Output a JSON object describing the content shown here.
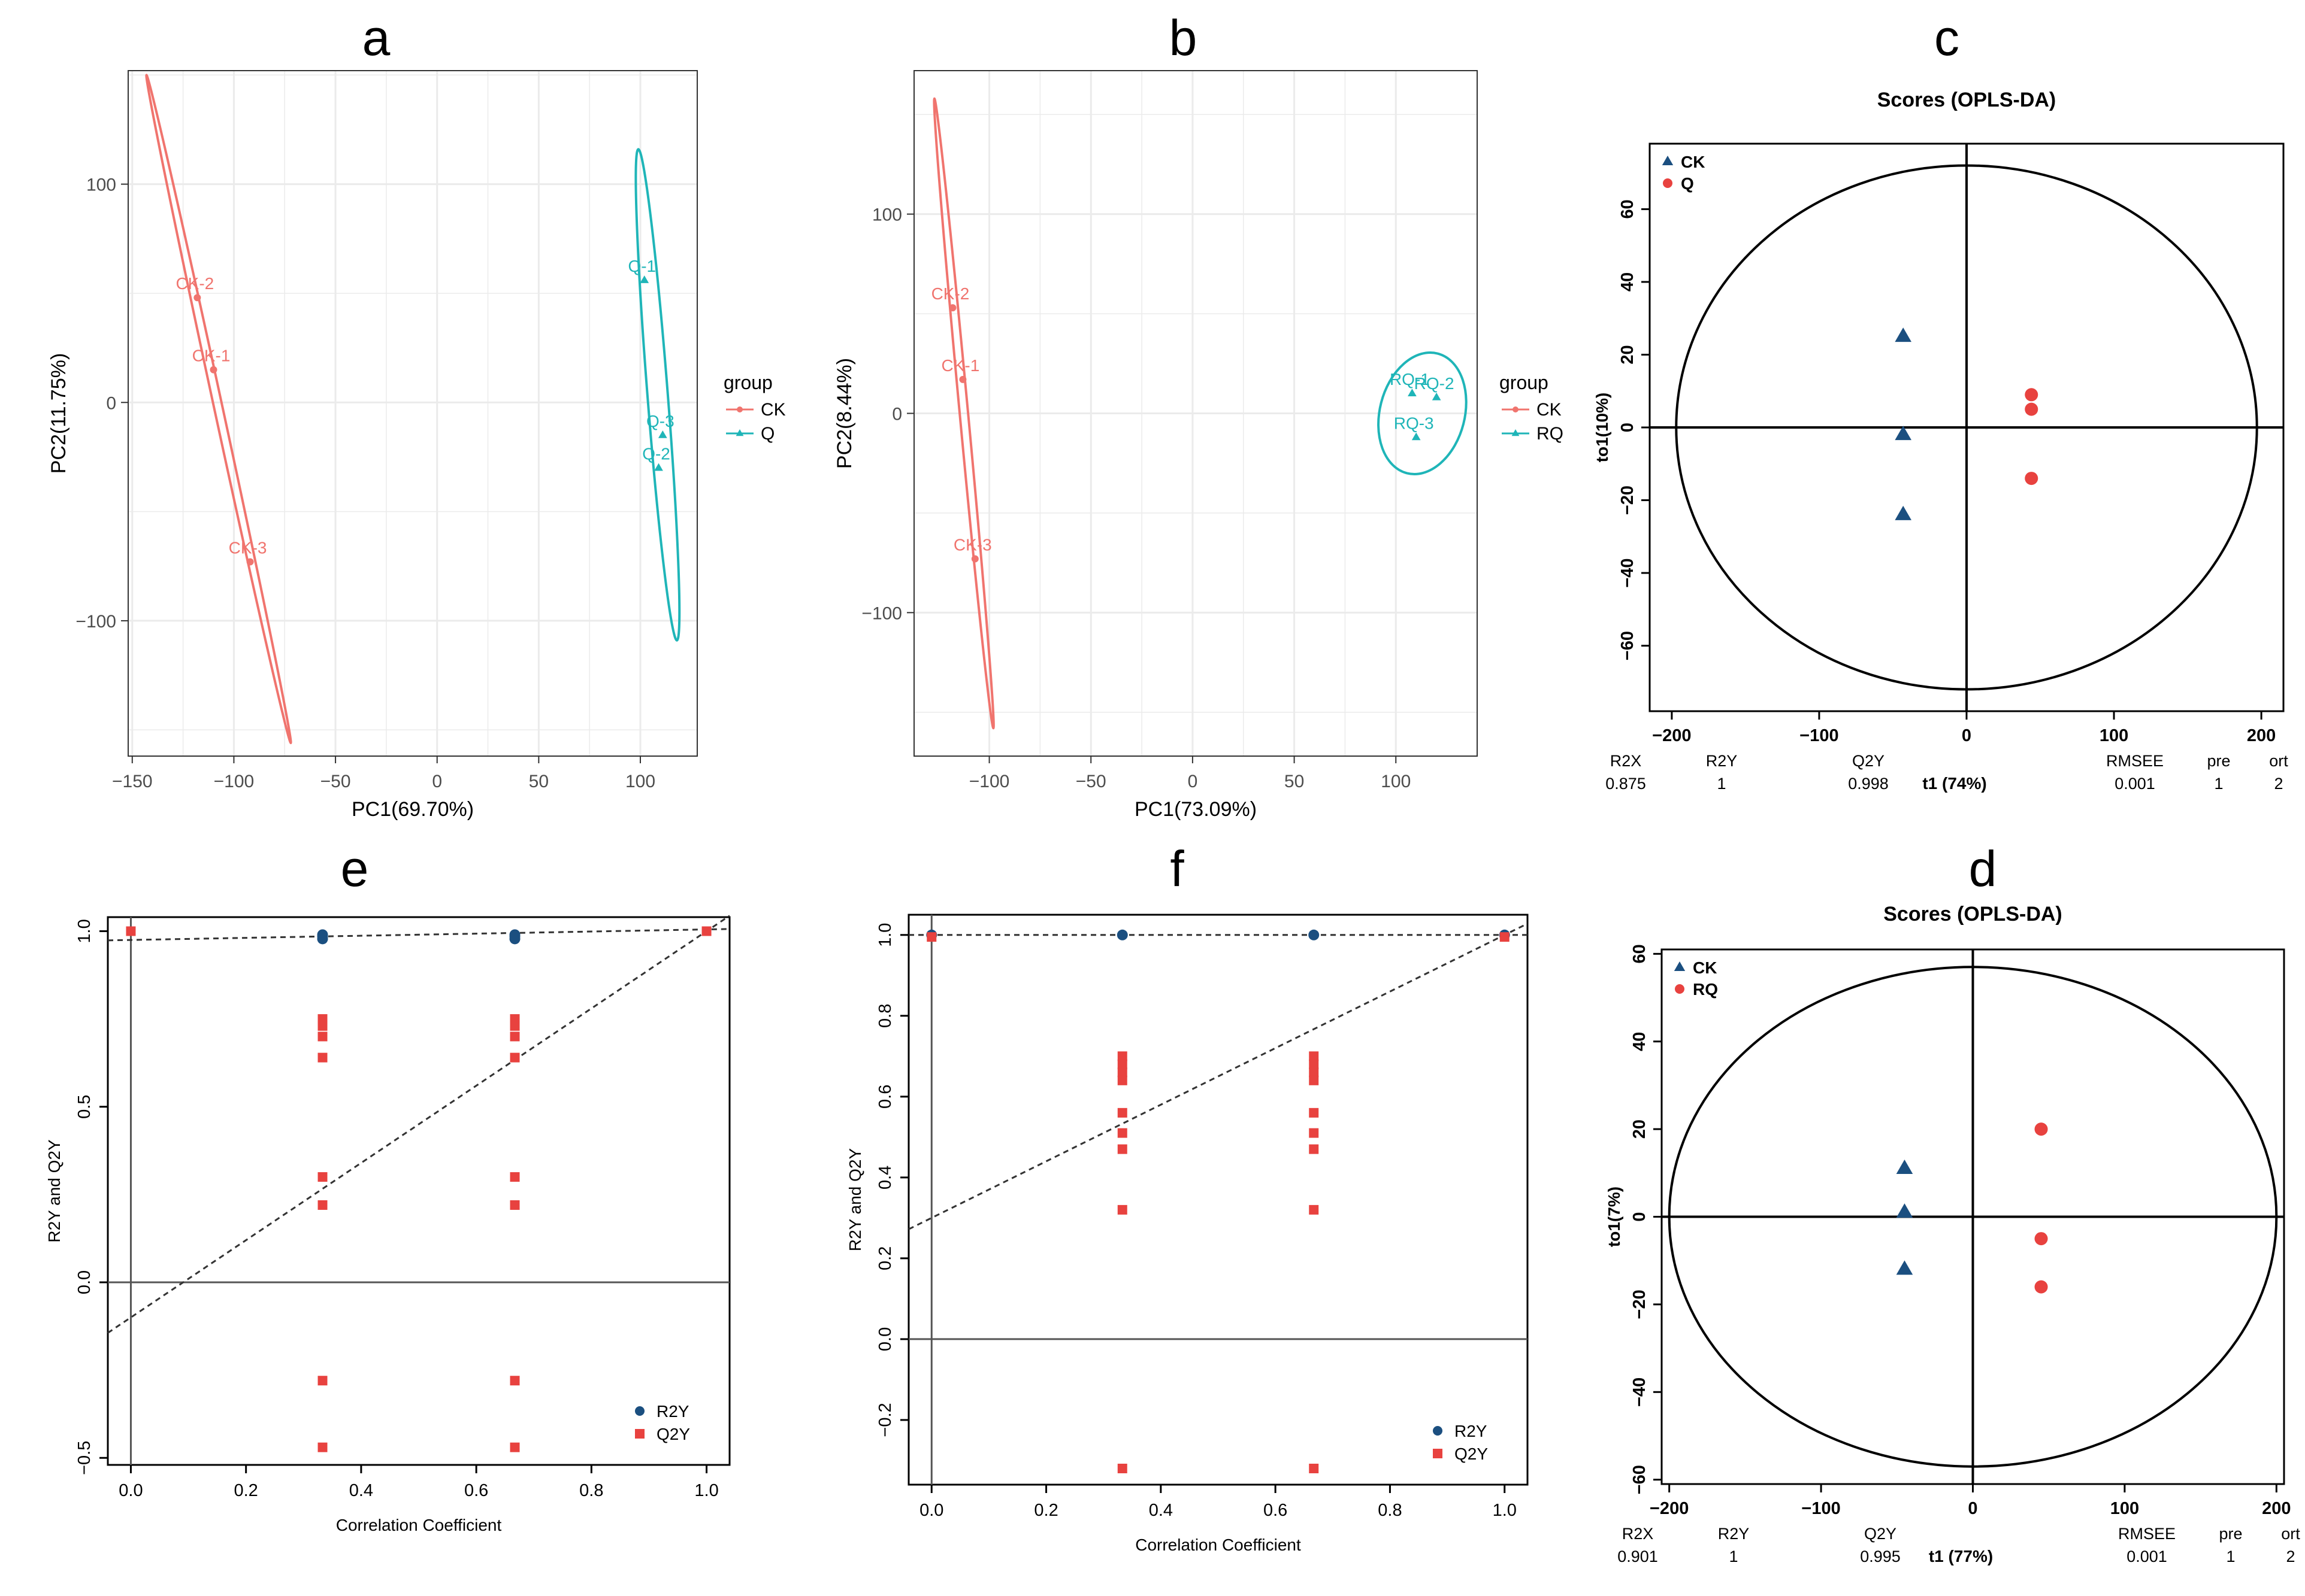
{
  "figure": {
    "colors": {
      "ck_pca": "#F0746E",
      "q_pca": "#1FB5B8",
      "opls_ck": "#1B4F80",
      "opls_q": "#E8423F",
      "grid": "#EBEBEB",
      "panel_border": "#333333",
      "ref_line": "#555555"
    }
  },
  "chart_data": [
    {
      "id": "a",
      "panel_label": "a",
      "type": "scatter",
      "subtype": "pca_score",
      "xlabel": "PC1(69.70%)",
      "ylabel": "PC2(11.75%)",
      "xlim": [
        -152,
        128
      ],
      "ylim": [
        -162,
        152
      ],
      "xticks": [
        -150,
        -100,
        -50,
        0,
        50,
        100
      ],
      "yticks": [
        -100,
        0,
        100
      ],
      "xtick_labels": [
        "−150",
        "−100",
        "−50",
        "0",
        "50",
        "100"
      ],
      "ytick_labels": [
        "−100",
        "0",
        "100"
      ],
      "legend": {
        "title": "group",
        "entries": [
          "CK",
          "Q"
        ],
        "position": "right"
      },
      "series": [
        {
          "name": "CK",
          "marker": "circle",
          "points": [
            {
              "label": "CK-2",
              "x": -118,
              "y": 48
            },
            {
              "label": "CK-1",
              "x": -110,
              "y": 15
            },
            {
              "label": "CK-3",
              "x": -92,
              "y": -73
            }
          ],
          "ellipse_axis": [
            [
              -143,
              150
            ],
            [
              -72,
              -156
            ]
          ]
        },
        {
          "name": "Q",
          "marker": "triangle",
          "points": [
            {
              "label": "Q-1",
              "x": 102,
              "y": 56
            },
            {
              "label": "Q-3",
              "x": 111,
              "y": -15
            },
            {
              "label": "Q-2",
              "x": 109,
              "y": -30
            }
          ],
          "ellipse_axis": [
            [
              99,
              116
            ],
            [
              118,
              -109
            ]
          ]
        }
      ]
    },
    {
      "id": "b",
      "panel_label": "b",
      "type": "scatter",
      "subtype": "pca_score",
      "xlabel": "PC1(73.09%)",
      "ylabel": "PC2(8.44%)",
      "xlim": [
        -137,
        140
      ],
      "ylim": [
        -172,
        172
      ],
      "xticks": [
        -100,
        -50,
        0,
        50,
        100
      ],
      "yticks": [
        -100,
        0,
        100
      ],
      "xtick_labels": [
        "−100",
        "−50",
        "0",
        "50",
        "100"
      ],
      "ytick_labels": [
        "−100",
        "0",
        "100"
      ],
      "legend": {
        "title": "group",
        "entries": [
          "CK",
          "RQ"
        ],
        "position": "right"
      },
      "series": [
        {
          "name": "CK",
          "marker": "circle",
          "points": [
            {
              "label": "CK-2",
              "x": -118,
              "y": 53
            },
            {
              "label": "CK-1",
              "x": -113,
              "y": 17
            },
            {
              "label": "CK-3",
              "x": -107,
              "y": -73
            }
          ],
          "ellipse_axis": [
            [
              -127,
              158
            ],
            [
              -98,
              -158
            ]
          ]
        },
        {
          "name": "RQ",
          "marker": "triangle",
          "points": [
            {
              "label": "RQ-1",
              "x": 108,
              "y": 10
            },
            {
              "label": "RQ-2",
              "x": 120,
              "y": 8
            },
            {
              "label": "RQ-3",
              "x": 110,
              "y": -12
            }
          ],
          "ellipse": {
            "cx": 113,
            "cy": 0,
            "rx": 11,
            "ry": 31,
            "rot": 0.25
          }
        }
      ]
    },
    {
      "id": "c",
      "panel_label": "c",
      "type": "scatter",
      "subtype": "opls_da_score",
      "title": "Scores (OPLS-DA)",
      "xlabel": "t1 (74%)",
      "ylabel": "to1(10%)",
      "xlim": [
        -215,
        215
      ],
      "ylim": [
        -78,
        78
      ],
      "xticks": [
        -200,
        -100,
        0,
        100,
        200
      ],
      "yticks": [
        -60,
        -40,
        -20,
        0,
        20,
        40,
        60
      ],
      "xtick_labels": [
        "−200",
        "−100",
        "0",
        "100",
        "200"
      ],
      "ytick_labels": [
        "−60",
        "−40",
        "−20",
        "0",
        "20",
        "40",
        "60"
      ],
      "legend": {
        "entries": [
          "CK",
          "Q"
        ],
        "position": "top-left"
      },
      "series": [
        {
          "name": "CK",
          "marker": "triangle",
          "points": [
            {
              "x": -43,
              "y": 25
            },
            {
              "x": -43,
              "y": -2
            },
            {
              "x": -43,
              "y": -24
            }
          ]
        },
        {
          "name": "Q",
          "marker": "circle",
          "points": [
            {
              "x": 44,
              "y": 9
            },
            {
              "x": 44,
              "y": 5
            },
            {
              "x": 44,
              "y": -14
            }
          ]
        }
      ],
      "ellipse": {
        "rx": 197,
        "ry": 72
      },
      "stats": {
        "headers": [
          "R2X",
          "R2Y",
          "Q2Y",
          "RMSEE",
          "pre",
          "ort"
        ],
        "values": [
          "0.875",
          "1",
          "0.998",
          "0.001",
          "1",
          "2"
        ]
      }
    },
    {
      "id": "d",
      "panel_label": "d",
      "type": "scatter",
      "subtype": "opls_da_score",
      "title": "Scores (OPLS-DA)",
      "xlabel": "t1 (77%)",
      "ylabel": "to1(7%)",
      "xlim": [
        -205,
        205
      ],
      "ylim": [
        -61,
        61
      ],
      "xticks": [
        -200,
        -100,
        0,
        100,
        200
      ],
      "yticks": [
        -60,
        -40,
        -20,
        0,
        20,
        40,
        60
      ],
      "xtick_labels": [
        "−200",
        "−100",
        "0",
        "100",
        "200"
      ],
      "ytick_labels": [
        "−60",
        "−40",
        "−20",
        "0",
        "20",
        "40",
        "60"
      ],
      "legend": {
        "entries": [
          "CK",
          "RQ"
        ],
        "position": "top-left"
      },
      "series": [
        {
          "name": "CK",
          "marker": "triangle",
          "points": [
            {
              "x": -45,
              "y": 11
            },
            {
              "x": -45,
              "y": 1
            },
            {
              "x": -45,
              "y": -12
            }
          ]
        },
        {
          "name": "RQ",
          "marker": "circle",
          "points": [
            {
              "x": 45,
              "y": 20
            },
            {
              "x": 45,
              "y": -5
            },
            {
              "x": 45,
              "y": -16
            }
          ]
        }
      ],
      "ellipse": {
        "rx": 200,
        "ry": 57
      },
      "stats": {
        "headers": [
          "R2X",
          "R2Y",
          "Q2Y",
          "RMSEE",
          "pre",
          "ort"
        ],
        "values": [
          "0.901",
          "1",
          "0.995",
          "0.001",
          "1",
          "2"
        ]
      }
    },
    {
      "id": "e",
      "panel_label": "e",
      "type": "scatter",
      "subtype": "permutation_test",
      "xlabel": "Correlation Coefficient",
      "ylabel": "R2Y and Q2Y",
      "xlim": [
        -0.04,
        1.04
      ],
      "ylim": [
        -0.52,
        1.04
      ],
      "xticks": [
        0,
        0.2,
        0.4,
        0.6,
        0.8,
        1.0
      ],
      "yticks": [
        -0.5,
        0,
        0.5,
        1.0
      ],
      "xtick_labels": [
        "0.0",
        "0.2",
        "0.4",
        "0.6",
        "0.8",
        "1.0"
      ],
      "ytick_labels": [
        "−0.5",
        "0.0",
        "0.5",
        "1.0"
      ],
      "legend": {
        "entries": [
          "R2Y",
          "Q2Y"
        ],
        "position": "bottom-right"
      },
      "series": [
        {
          "name": "R2Y",
          "marker": "circle",
          "points": [
            {
              "x": 0.333,
              "y": 0.99
            },
            {
              "x": 0.333,
              "y": 0.985
            },
            {
              "x": 0.333,
              "y": 0.978
            },
            {
              "x": 0.667,
              "y": 0.99
            },
            {
              "x": 0.667,
              "y": 0.985
            },
            {
              "x": 0.667,
              "y": 0.978
            }
          ]
        },
        {
          "name": "Q2Y",
          "marker": "square",
          "points": [
            {
              "x": 0,
              "y": 1.0
            },
            {
              "x": 1.0,
              "y": 1.0
            },
            {
              "x": 0.333,
              "y": 0.75
            },
            {
              "x": 0.333,
              "y": 0.73
            },
            {
              "x": 0.333,
              "y": 0.7
            },
            {
              "x": 0.333,
              "y": 0.64
            },
            {
              "x": 0.333,
              "y": 0.3
            },
            {
              "x": 0.333,
              "y": 0.22
            },
            {
              "x": 0.333,
              "y": -0.28
            },
            {
              "x": 0.333,
              "y": -0.47
            },
            {
              "x": 0.667,
              "y": 0.75
            },
            {
              "x": 0.667,
              "y": 0.73
            },
            {
              "x": 0.667,
              "y": 0.7
            },
            {
              "x": 0.667,
              "y": 0.64
            },
            {
              "x": 0.667,
              "y": 0.3
            },
            {
              "x": 0.667,
              "y": 0.22
            },
            {
              "x": 0.667,
              "y": -0.28
            },
            {
              "x": 0.667,
              "y": -0.47
            }
          ]
        }
      ],
      "fit_lines": [
        {
          "name": "R2Y",
          "intercept": 0.975,
          "slope": 0.03
        },
        {
          "name": "Q2Y",
          "intercept": -0.1,
          "slope": 1.1
        }
      ]
    },
    {
      "id": "f",
      "panel_label": "f",
      "type": "scatter",
      "subtype": "permutation_test",
      "xlabel": "Correlation Coefficient",
      "ylabel": "R2Y and Q2Y",
      "xlim": [
        -0.04,
        1.04
      ],
      "ylim": [
        -0.36,
        1.05
      ],
      "xticks": [
        0,
        0.2,
        0.4,
        0.6,
        0.8,
        1.0
      ],
      "yticks": [
        -0.2,
        0,
        0.2,
        0.4,
        0.6,
        0.8,
        1.0
      ],
      "xtick_labels": [
        "0.0",
        "0.2",
        "0.4",
        "0.6",
        "0.8",
        "1.0"
      ],
      "ytick_labels": [
        "−0.2",
        "0.0",
        "0.2",
        "0.4",
        "0.6",
        "0.8",
        "1.0"
      ],
      "legend": {
        "entries": [
          "R2Y",
          "Q2Y"
        ],
        "position": "bottom-right"
      },
      "series": [
        {
          "name": "R2Y",
          "marker": "circle",
          "points": [
            {
              "x": 0,
              "y": 1.0
            },
            {
              "x": 0.333,
              "y": 1.0
            },
            {
              "x": 0.667,
              "y": 1.0
            },
            {
              "x": 1.0,
              "y": 1.0
            }
          ]
        },
        {
          "name": "Q2Y",
          "marker": "square",
          "points": [
            {
              "x": 0,
              "y": 0.995
            },
            {
              "x": 1.0,
              "y": 0.995
            },
            {
              "x": 0.333,
              "y": 0.7
            },
            {
              "x": 0.333,
              "y": 0.68
            },
            {
              "x": 0.333,
              "y": 0.66
            },
            {
              "x": 0.333,
              "y": 0.64
            },
            {
              "x": 0.333,
              "y": 0.56
            },
            {
              "x": 0.333,
              "y": 0.51
            },
            {
              "x": 0.333,
              "y": 0.47
            },
            {
              "x": 0.333,
              "y": 0.32
            },
            {
              "x": 0.333,
              "y": -0.32
            },
            {
              "x": 0.667,
              "y": 0.7
            },
            {
              "x": 0.667,
              "y": 0.68
            },
            {
              "x": 0.667,
              "y": 0.66
            },
            {
              "x": 0.667,
              "y": 0.64
            },
            {
              "x": 0.667,
              "y": 0.56
            },
            {
              "x": 0.667,
              "y": 0.51
            },
            {
              "x": 0.667,
              "y": 0.47
            },
            {
              "x": 0.667,
              "y": 0.32
            },
            {
              "x": 0.667,
              "y": -0.32
            }
          ]
        }
      ],
      "fit_lines": [
        {
          "name": "R2Y",
          "intercept": 1.0,
          "slope": 0
        },
        {
          "name": "Q2Y",
          "intercept": 0.3,
          "slope": 0.7
        }
      ]
    }
  ]
}
